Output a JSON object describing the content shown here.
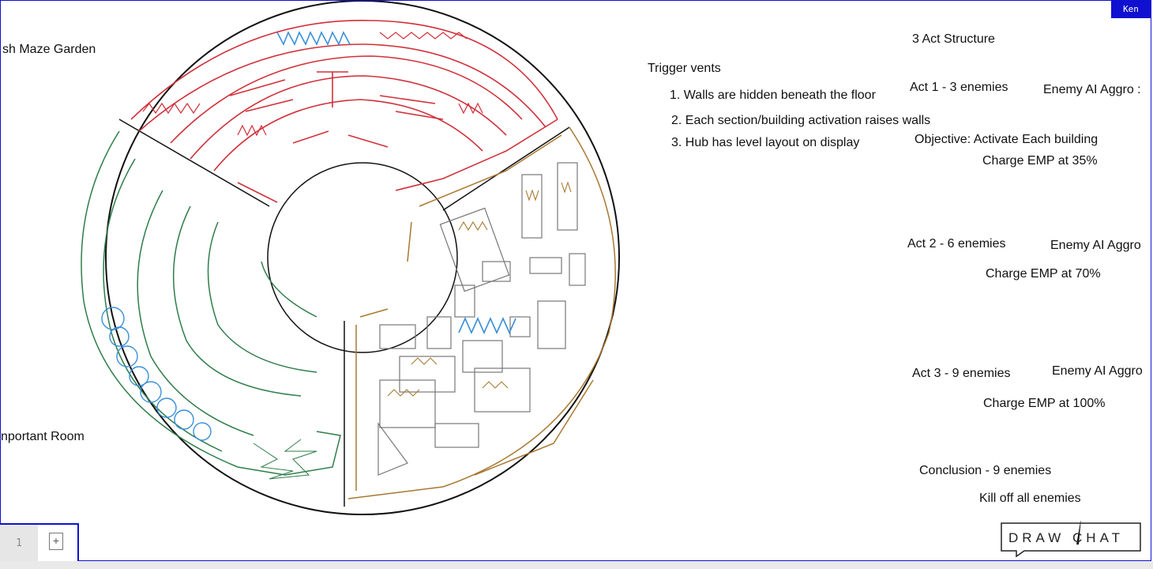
{
  "user_tag": "Ken",
  "labels": {
    "maze_garden": "sh Maze Garden",
    "important_room": "nportant Room"
  },
  "notes": {
    "trigger_vents": "Trigger vents",
    "item1": "1. Walls are   hidden beneath the floor",
    "item2": "2. Each section/building activation raises walls",
    "item3": "3. Hub has level layout on display",
    "structure_title": "3 Act Structure",
    "act1": "Act 1 - 3 enemies",
    "act1_ai": "Enemy AI Aggro :",
    "act1_objective": "Objective: Activate Each building",
    "act1_emp": "Charge EMP at 35%",
    "act2": "Act 2 - 6 enemies",
    "act2_ai": "Enemy AI Aggro",
    "act2_emp": "Charge EMP at 70%",
    "act3": "Act 3 - 9 enemies",
    "act3_ai": "Enemy AI Aggro",
    "act3_emp": "Charge EMP at 100%",
    "conclusion": "Conclusion - 9 enemies",
    "conclusion_goal": "Kill off all enemies"
  },
  "page_bar": {
    "page_number": "1",
    "add_page_glyph": "+"
  },
  "logo": {
    "text": "DRAW CHAT"
  },
  "colors": {
    "frame": "#1010d0",
    "red": "#d0303a",
    "green": "#2e7d4a",
    "brown": "#a87830",
    "blue": "#3a8fd8",
    "gray": "#777777"
  }
}
